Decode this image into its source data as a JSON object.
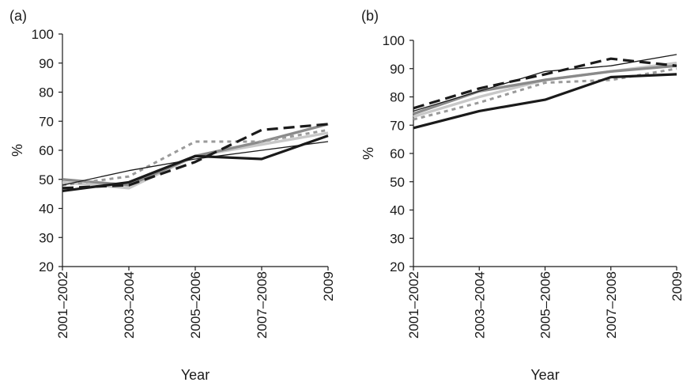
{
  "chart_data": [
    {
      "type": "line",
      "panel_label": "(a)",
      "xlabel": "Year",
      "ylabel": "%",
      "categories": [
        "2001–2002",
        "2003–2004",
        "2005–2006",
        "2007–2008",
        "2009"
      ],
      "ylim": [
        20,
        100
      ],
      "yticks": [
        "20",
        "30",
        "40",
        "50",
        "60",
        "70",
        "80",
        "90",
        "100"
      ],
      "grid": false,
      "series": [
        {
          "values": [
            46,
            49,
            58,
            57,
            65
          ],
          "color": "#1a1a1a",
          "style": "solid-thick"
        },
        {
          "values": [
            48,
            53,
            57,
            60,
            63
          ],
          "color": "#1a1a1a",
          "style": "solid-thin"
        },
        {
          "values": [
            47,
            48,
            56,
            67,
            69
          ],
          "color": "#1a1a1a",
          "style": "dashed"
        },
        {
          "values": [
            48,
            51,
            63,
            63,
            67
          ],
          "color": "#9a9a9a",
          "style": "dotted"
        },
        {
          "values": [
            50,
            48,
            58,
            63,
            69
          ],
          "color": "#8a8a8a",
          "style": "solid-gray"
        },
        {
          "values": [
            49,
            47,
            58,
            62,
            66
          ],
          "color": "#c8c8c8",
          "style": "solid-lightgray"
        }
      ]
    },
    {
      "type": "line",
      "panel_label": "(b)",
      "xlabel": "Year",
      "ylabel": "%",
      "categories": [
        "2001–2002",
        "2003–2004",
        "2005–2006",
        "2007–2008",
        "2009"
      ],
      "ylim": [
        20,
        100
      ],
      "yticks": [
        "20",
        "30",
        "40",
        "50",
        "60",
        "70",
        "80",
        "90",
        "100"
      ],
      "grid": false,
      "series": [
        {
          "values": [
            69,
            75,
            79,
            87,
            88
          ],
          "color": "#1a1a1a",
          "style": "solid-thick"
        },
        {
          "values": [
            75,
            82,
            89,
            91,
            95
          ],
          "color": "#1a1a1a",
          "style": "solid-thin"
        },
        {
          "values": [
            76,
            83,
            88,
            93.5,
            91
          ],
          "color": "#1a1a1a",
          "style": "dashed"
        },
        {
          "values": [
            72,
            78,
            85,
            86,
            90
          ],
          "color": "#9a9a9a",
          "style": "dotted"
        },
        {
          "values": [
            74,
            82,
            86,
            89,
            91
          ],
          "color": "#8a8a8a",
          "style": "solid-gray"
        },
        {
          "values": [
            73,
            80,
            86,
            89,
            92
          ],
          "color": "#c8c8c8",
          "style": "solid-lightgray"
        }
      ]
    }
  ]
}
